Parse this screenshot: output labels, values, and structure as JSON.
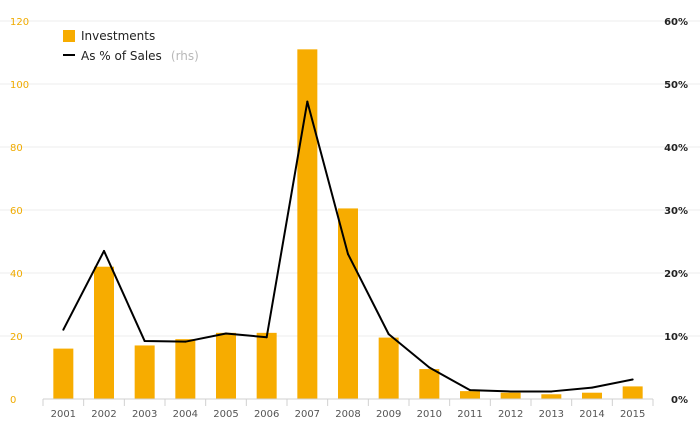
{
  "chart_data": {
    "type": "bar",
    "categories": [
      "2001",
      "2002",
      "2003",
      "2004",
      "2005",
      "2006",
      "2007",
      "2008",
      "2009",
      "2010",
      "2011",
      "2012",
      "2013",
      "2014",
      "2015"
    ],
    "series": [
      {
        "name": "Investments",
        "type": "bar",
        "axis": "left",
        "color": "#f7ac00",
        "values": [
          16,
          42,
          17,
          19,
          21,
          21,
          111,
          60.5,
          19.5,
          9.5,
          2.5,
          2,
          1.5,
          2,
          4
        ]
      },
      {
        "name": "As % of Sales",
        "name_suffix": "(rhs)",
        "type": "line",
        "axis": "right",
        "color": "#000000",
        "values": [
          11,
          23.5,
          9.2,
          9.1,
          10.4,
          9.8,
          47.2,
          23.0,
          10.3,
          5.0,
          1.4,
          1.2,
          1.2,
          1.8,
          3.1
        ]
      }
    ],
    "y_left": {
      "ylim": [
        0,
        120
      ],
      "ticks": [
        "0",
        "20",
        "40",
        "60",
        "80",
        "100",
        "120"
      ]
    },
    "y_right": {
      "ylim": [
        0,
        60
      ],
      "ticks": [
        "0%",
        "10%",
        "20%",
        "30%",
        "40%",
        "50%",
        "60%"
      ]
    },
    "grid": true,
    "legend": "top-left"
  }
}
